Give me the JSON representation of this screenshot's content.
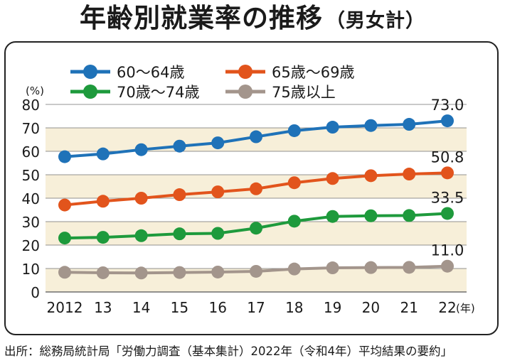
{
  "title": "年齢別就業率の推移",
  "title_suffix": "（男女計）",
  "source": "出所：総務局統計局「労働力調査（基本集計）2022年（令和4年）平均結果の要約」",
  "chart_data": {
    "type": "line",
    "title": "年齢別就業率の推移（男女計）",
    "xlabel": "(年)",
    "ylabel": "(%)",
    "ylim": [
      0,
      80
    ],
    "yticks": [
      0,
      10,
      20,
      30,
      40,
      50,
      60,
      70,
      80
    ],
    "x": [
      "2012",
      "13",
      "14",
      "15",
      "16",
      "17",
      "18",
      "19",
      "20",
      "21",
      "22"
    ],
    "grid": "horizontal",
    "legend": "top",
    "series": [
      {
        "name": "60〜64歳",
        "color": "#1f72b8",
        "values": [
          57.7,
          58.9,
          60.7,
          62.2,
          63.6,
          66.2,
          68.8,
          70.3,
          71.0,
          71.5,
          73.0
        ],
        "end_label": "73.0"
      },
      {
        "name": "65歳〜69歳",
        "color": "#e2541c",
        "values": [
          37.1,
          38.7,
          40.0,
          41.5,
          42.7,
          44.0,
          46.6,
          48.4,
          49.6,
          50.3,
          50.8
        ],
        "end_label": "50.8"
      },
      {
        "name": "70歳〜74歳",
        "color": "#1e9a3c",
        "values": [
          23.0,
          23.3,
          24.0,
          24.8,
          25.0,
          27.2,
          30.2,
          32.2,
          32.5,
          32.6,
          33.5
        ],
        "end_label": "33.5"
      },
      {
        "name": "75歳以上",
        "color": "#a3958c",
        "values": [
          8.4,
          8.2,
          8.1,
          8.3,
          8.5,
          8.8,
          9.8,
          10.3,
          10.4,
          10.5,
          11.0
        ],
        "end_label": "11.0"
      }
    ]
  }
}
